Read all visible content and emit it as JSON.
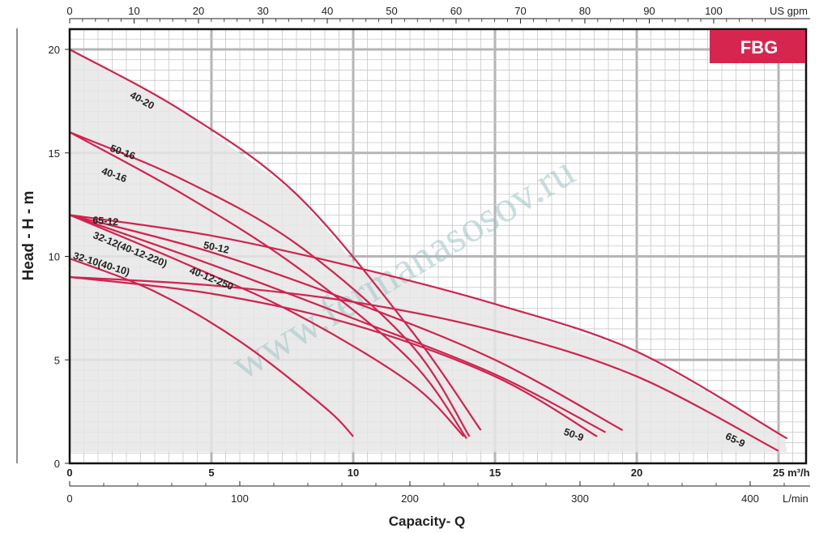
{
  "chart_data": {
    "type": "line",
    "badge": "FBG",
    "watermark": "www.fermanasosov.ru",
    "ylabel": "Head - H - m",
    "xlabel": "Capacity- Q",
    "x_unit": "m³/h",
    "xlim": [
      0,
      26
    ],
    "ylim": [
      0,
      21
    ],
    "y_ticks": [
      "0",
      "5",
      "10",
      "15",
      "20"
    ],
    "x_ticks_m3h": [
      "0",
      "5",
      "10",
      "15",
      "20",
      "25 m³/h"
    ],
    "x_ticks_lmin": [
      "0",
      "100",
      "200",
      "300",
      "400",
      "L/min"
    ],
    "x_ticks_usgpm": [
      "0",
      "10",
      "20",
      "30",
      "40",
      "50",
      "60",
      "70",
      "80",
      "90",
      "100",
      "US gpm"
    ],
    "series": [
      {
        "name": "40-20",
        "x": [
          0,
          4,
          8,
          12,
          14.5
        ],
        "y": [
          20,
          17,
          13,
          6.5,
          1.6
        ]
      },
      {
        "name": "50-16",
        "x": [
          0,
          4,
          8,
          12,
          14.1
        ],
        "y": [
          16,
          13.7,
          10.6,
          5.8,
          1.3
        ]
      },
      {
        "name": "40-16",
        "x": [
          0,
          4,
          8,
          12,
          14.0
        ],
        "y": [
          16,
          13.0,
          9.5,
          5.0,
          1.2
        ]
      },
      {
        "name": "65-12",
        "x": [
          0,
          5,
          10,
          15,
          20,
          25.3
        ],
        "y": [
          12,
          11.0,
          9.5,
          7.7,
          5.4,
          1.2
        ]
      },
      {
        "name": "50-12",
        "x": [
          0,
          5,
          10,
          15,
          19.5
        ],
        "y": [
          12,
          10.2,
          7.8,
          5.0,
          1.6
        ]
      },
      {
        "name": "40-12-250",
        "x": [
          0,
          5,
          10,
          15,
          18.9
        ],
        "y": [
          12,
          9.6,
          7.0,
          4.3,
          1.5
        ]
      },
      {
        "name": "32-12(40-12-220)",
        "x": [
          0,
          4,
          8,
          12,
          13.9
        ],
        "y": [
          12,
          9.7,
          7.2,
          3.9,
          1.3
        ]
      },
      {
        "name": "32-10(40-10)",
        "x": [
          0,
          3,
          6,
          9,
          10.0
        ],
        "y": [
          9.9,
          8.3,
          5.9,
          2.7,
          1.3
        ]
      },
      {
        "name": "50-9",
        "x": [
          0,
          5,
          10,
          15,
          18.6
        ],
        "y": [
          9.0,
          8.2,
          6.7,
          4.2,
          1.3
        ]
      },
      {
        "name": "65-9",
        "x": [
          0,
          5,
          10,
          15,
          20,
          25.0
        ],
        "y": [
          9.0,
          8.6,
          7.8,
          6.4,
          4.2,
          0.6
        ]
      }
    ],
    "label_positions_data": [
      {
        "name": "40-20",
        "x": 2.1,
        "y": 17.7,
        "angle": 29
      },
      {
        "name": "50-16",
        "x": 1.4,
        "y": 15.1,
        "angle": 20
      },
      {
        "name": "40-16",
        "x": 1.1,
        "y": 14.0,
        "angle": 20
      },
      {
        "name": "65-12",
        "x": 0.8,
        "y": 11.6,
        "angle": 5
      },
      {
        "name": "50-12",
        "x": 4.7,
        "y": 10.4,
        "angle": 12
      },
      {
        "name": "40-12-250",
        "x": 4.2,
        "y": 9.2,
        "angle": 22
      },
      {
        "name": "32-12(40-12-220)",
        "x": 0.8,
        "y": 10.9,
        "angle": 22
      },
      {
        "name": "32-10(40-10)",
        "x": 0.1,
        "y": 9.9,
        "angle": 17
      },
      {
        "name": "50-9",
        "x": 17.4,
        "y": 1.4,
        "angle": 20
      },
      {
        "name": "65-9",
        "x": 23.1,
        "y": 1.2,
        "angle": 26
      }
    ],
    "colors": {
      "curve": "#d0234e",
      "badge": "#d6264f",
      "shade": "#e6e6e6",
      "grid_major": "#b5b5b5",
      "grid_minor": "#c8c8c8"
    },
    "grid": true
  }
}
